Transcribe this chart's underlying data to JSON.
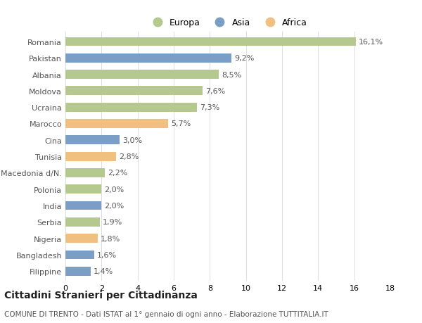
{
  "categories": [
    "Romania",
    "Pakistan",
    "Albania",
    "Moldova",
    "Ucraina",
    "Marocco",
    "Cina",
    "Tunisia",
    "Macedonia d/N.",
    "Polonia",
    "India",
    "Serbia",
    "Nigeria",
    "Bangladesh",
    "Filippine"
  ],
  "values": [
    16.1,
    9.2,
    8.5,
    7.6,
    7.3,
    5.7,
    3.0,
    2.8,
    2.2,
    2.0,
    2.0,
    1.9,
    1.8,
    1.6,
    1.4
  ],
  "labels": [
    "16,1%",
    "9,2%",
    "8,5%",
    "7,6%",
    "7,3%",
    "5,7%",
    "3,0%",
    "2,8%",
    "2,2%",
    "2,0%",
    "2,0%",
    "1,9%",
    "1,8%",
    "1,6%",
    "1,4%"
  ],
  "continents": [
    "Europa",
    "Asia",
    "Europa",
    "Europa",
    "Europa",
    "Africa",
    "Asia",
    "Africa",
    "Europa",
    "Europa",
    "Asia",
    "Europa",
    "Africa",
    "Asia",
    "Asia"
  ],
  "colors": {
    "Europa": "#b5c98e",
    "Asia": "#7b9ec7",
    "Africa": "#f0c080"
  },
  "legend_labels": [
    "Europa",
    "Asia",
    "Africa"
  ],
  "xlim": [
    0,
    18
  ],
  "xticks": [
    0,
    2,
    4,
    6,
    8,
    10,
    12,
    14,
    16,
    18
  ],
  "title_main": "Cittadini Stranieri per Cittadinanza",
  "title_sub": "COMUNE DI TRENTO - Dati ISTAT al 1° gennaio di ogni anno - Elaborazione TUTTITALIA.IT",
  "background_color": "#ffffff",
  "bar_height": 0.55,
  "label_fontsize": 8,
  "tick_fontsize": 8,
  "ytick_fontsize": 8,
  "title_fontsize": 10,
  "subtitle_fontsize": 7.5,
  "legend_fontsize": 9,
  "legend_marker_scale": 1.5
}
